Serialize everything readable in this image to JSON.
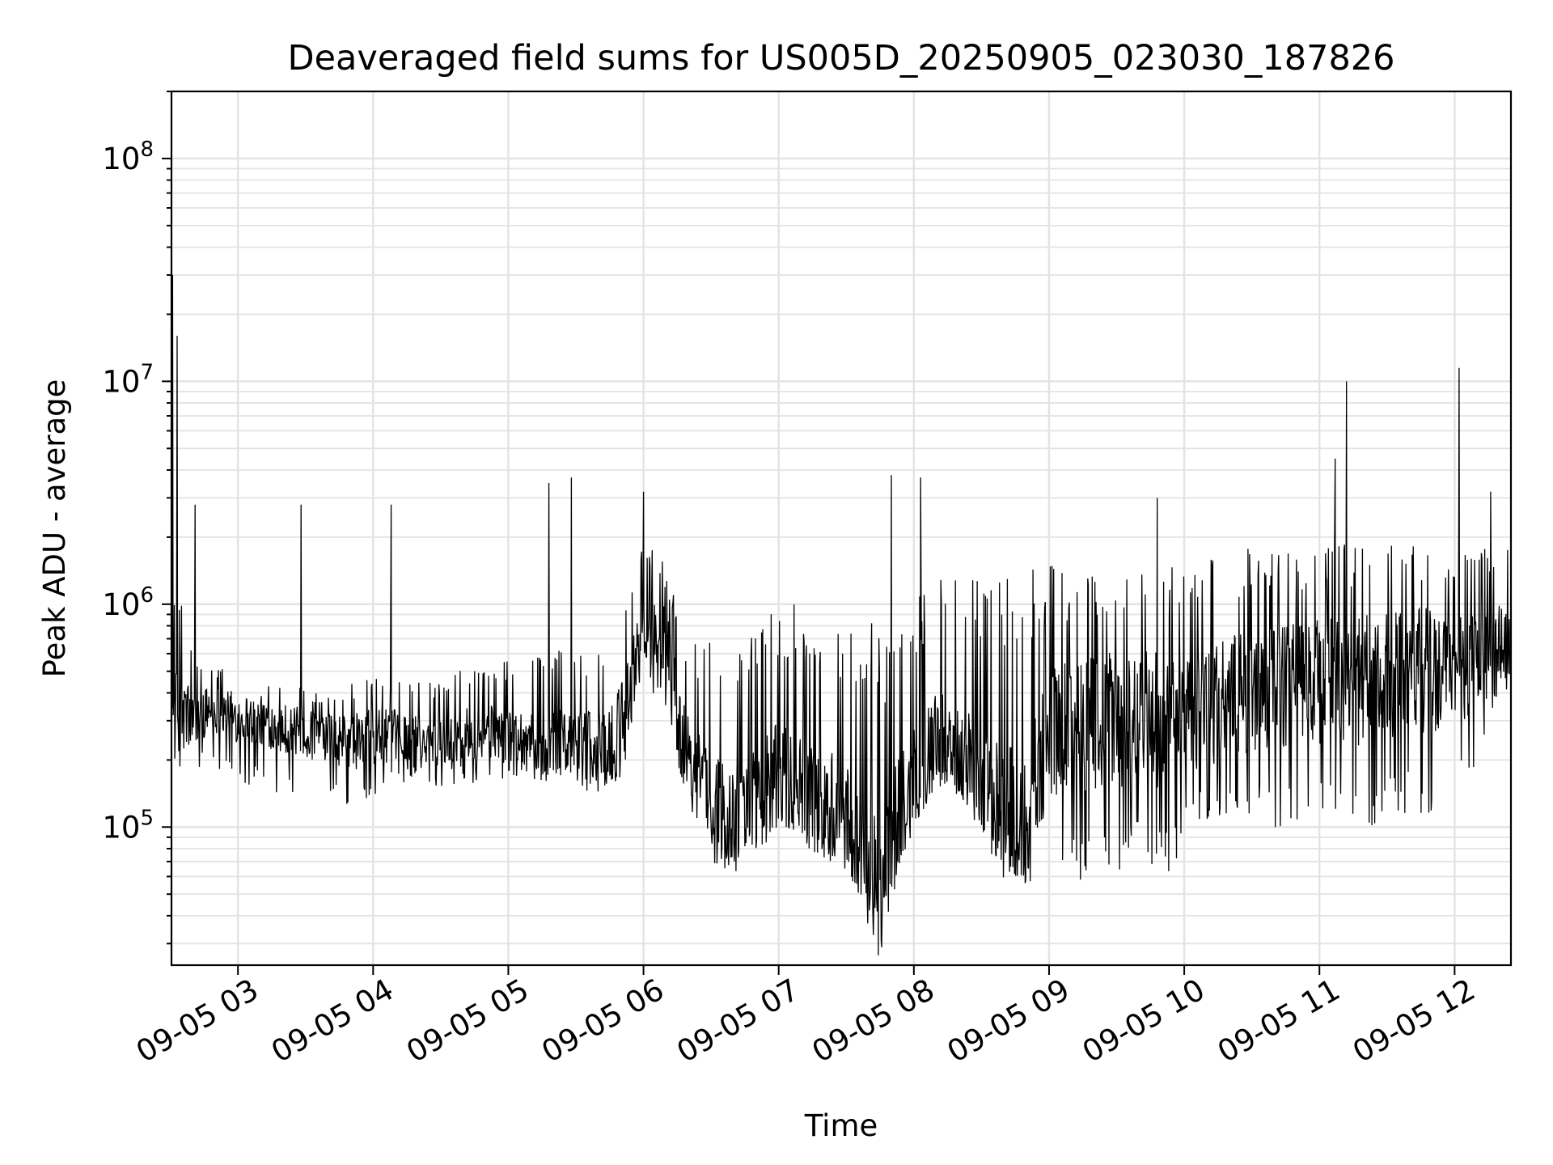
{
  "chart_data": {
    "type": "line",
    "title": "Deaveraged field sums for US005D_20250905_023030_187826",
    "xlabel": "Time",
    "ylabel": "Peak ADU - average",
    "yscale": "log",
    "xlim": [
      "2025-09-05 02:30:30",
      "2025-09-05 12:25:00"
    ],
    "ylim": [
      24000,
      200000000
    ],
    "grid": true,
    "line_color": "#000000",
    "x_ticks": [
      "09-05 03",
      "09-05 04",
      "09-05 05",
      "09-05 06",
      "09-05 07",
      "09-05 08",
      "09-05 09",
      "09-05 10",
      "09-05 11",
      "09-05 12"
    ],
    "y_ticks": [
      {
        "value": 100000,
        "base": "10",
        "exp": "5"
      },
      {
        "value": 1000000,
        "base": "10",
        "exp": "6"
      },
      {
        "value": 10000000,
        "base": "10",
        "exp": "7"
      },
      {
        "value": 100000000,
        "base": "10",
        "exp": "8"
      }
    ],
    "series": [
      {
        "x": [
          "2025-09-05 02:30:30",
          "2025-09-05 02:35",
          "2025-09-05 02:40",
          "2025-09-05 02:45",
          "2025-09-05 02:50",
          "2025-09-05 02:55",
          "2025-09-05 03:00",
          "2025-09-05 03:10",
          "2025-09-05 03:20",
          "2025-09-05 03:30",
          "2025-09-05 03:40",
          "2025-09-05 03:50",
          "2025-09-05 04:00",
          "2025-09-05 04:10",
          "2025-09-05 04:20",
          "2025-09-05 04:30",
          "2025-09-05 04:40",
          "2025-09-05 04:50",
          "2025-09-05 05:00",
          "2025-09-05 05:10",
          "2025-09-05 05:20",
          "2025-09-05 05:30",
          "2025-09-05 05:40",
          "2025-09-05 05:50",
          "2025-09-05 06:00",
          "2025-09-05 06:10",
          "2025-09-05 06:20",
          "2025-09-05 06:30",
          "2025-09-05 06:40",
          "2025-09-05 06:50",
          "2025-09-05 07:00",
          "2025-09-05 07:10",
          "2025-09-05 07:20",
          "2025-09-05 07:30",
          "2025-09-05 07:40",
          "2025-09-05 07:45",
          "2025-09-05 07:50",
          "2025-09-05 08:00",
          "2025-09-05 08:10",
          "2025-09-05 08:20",
          "2025-09-05 08:30",
          "2025-09-05 08:40",
          "2025-09-05 08:50",
          "2025-09-05 09:00",
          "2025-09-05 09:10",
          "2025-09-05 09:20",
          "2025-09-05 09:30",
          "2025-09-05 09:40",
          "2025-09-05 09:50",
          "2025-09-05 10:00",
          "2025-09-05 10:10",
          "2025-09-05 10:20",
          "2025-09-05 10:30",
          "2025-09-05 10:40",
          "2025-09-05 10:50",
          "2025-09-05 11:00",
          "2025-09-05 11:10",
          "2025-09-05 11:20",
          "2025-09-05 11:30",
          "2025-09-05 11:40",
          "2025-09-05 11:50",
          "2025-09-05 12:00",
          "2025-09-05 12:10",
          "2025-09-05 12:20"
        ],
        "y": [
          300000,
          320000,
          300000,
          330000,
          340000,
          330000,
          310000,
          300000,
          280000,
          260000,
          250000,
          240000,
          250000,
          260000,
          250000,
          240000,
          260000,
          270000,
          260000,
          250000,
          250000,
          240000,
          230000,
          260000,
          800000,
          700000,
          200000,
          130000,
          110000,
          150000,
          170000,
          150000,
          130000,
          110000,
          70000,
          50000,
          90000,
          170000,
          250000,
          230000,
          170000,
          120000,
          110000,
          250000,
          300000,
          300000,
          300000,
          350000,
          280000,
          300000,
          350000,
          380000,
          400000,
          420000,
          450000,
          450000,
          480000,
          450000,
          480000,
          500000,
          500000,
          520000,
          560000,
          700000
        ],
        "range_low": [
          200000,
          130000,
          170000,
          180000,
          180000,
          170000,
          150000,
          150000,
          140000,
          130000,
          130000,
          120000,
          130000,
          150000,
          160000,
          150000,
          160000,
          150000,
          170000,
          160000,
          160000,
          150000,
          140000,
          140000,
          400000,
          350000,
          110000,
          70000,
          60000,
          80000,
          90000,
          80000,
          70000,
          60000,
          42000,
          37000,
          50000,
          100000,
          160000,
          150000,
          90000,
          60000,
          55000,
          60000,
          55000,
          60000,
          55000,
          60000,
          55000,
          80000,
          100000,
          100000,
          100000,
          95000,
          90000,
          100000,
          100000,
          95000,
          100000,
          110000,
          100000,
          120000,
          130000,
          400000
        ],
        "range_high": [
          1500000,
          1500000,
          600000,
          600000,
          550000,
          500000,
          500000,
          480000,
          450000,
          420000,
          400000,
          450000,
          500000,
          480000,
          450000,
          450000,
          520000,
          550000,
          560000,
          600000,
          650000,
          600000,
          700000,
          1500000,
          2000000,
          1500000,
          800000,
          700000,
          700000,
          900000,
          1100000,
          1000000,
          1000000,
          900000,
          850000,
          800000,
          900000,
          1100000,
          1400000,
          1400000,
          1400000,
          1500000,
          1500000,
          1500000,
          1500000,
          1400000,
          1400000,
          1400000,
          1500000,
          1600000,
          1700000,
          1800000,
          1800000,
          1800000,
          1900000,
          1900000,
          2000000,
          2000000,
          2000000,
          2000000,
          1900000,
          1900000,
          2000000,
          2100000
        ]
      }
    ],
    "spikes": [
      {
        "x": "2025-09-05 02:31",
        "y": 30000000
      },
      {
        "x": "2025-09-05 02:33",
        "y": 16000000
      },
      {
        "x": "2025-09-05 02:41",
        "y": 2800000
      },
      {
        "x": "2025-09-05 03:28",
        "y": 2800000
      },
      {
        "x": "2025-09-05 04:08",
        "y": 2800000
      },
      {
        "x": "2025-09-05 05:18",
        "y": 3500000
      },
      {
        "x": "2025-09-05 05:28",
        "y": 3700000
      },
      {
        "x": "2025-09-05 06:00",
        "y": 3200000
      },
      {
        "x": "2025-09-05 07:50",
        "y": 3800000
      },
      {
        "x": "2025-09-05 08:03",
        "y": 3700000
      },
      {
        "x": "2025-09-05 09:48",
        "y": 3000000
      },
      {
        "x": "2025-09-05 11:07",
        "y": 4500000
      },
      {
        "x": "2025-09-05 11:12",
        "y": 10000000
      },
      {
        "x": "2025-09-05 12:02",
        "y": 11500000
      },
      {
        "x": "2025-09-05 12:16",
        "y": 3200000
      }
    ]
  }
}
